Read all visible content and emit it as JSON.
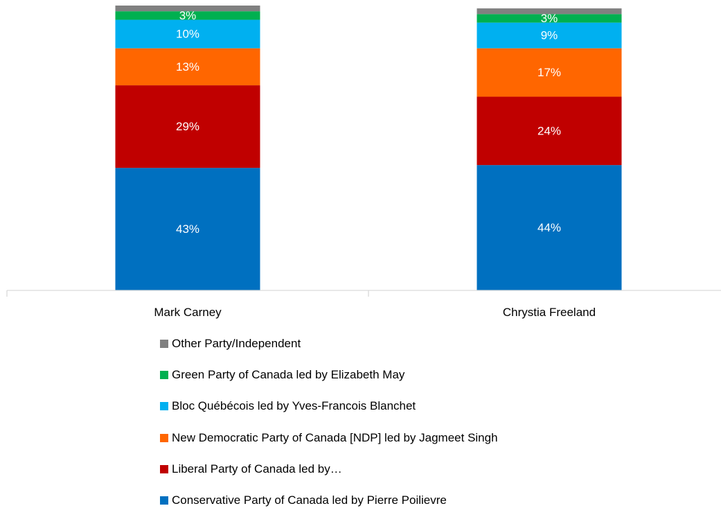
{
  "chart_data": {
    "type": "bar",
    "stacked": true,
    "title": "",
    "xlabel": "",
    "ylabel": "",
    "ylim": [
      0,
      100
    ],
    "grid": false,
    "legend_position": "bottom",
    "categories": [
      "Mark Carney",
      "Chrystia Freeland"
    ],
    "series": [
      {
        "name": "Conservative Party of Canada led by Pierre Poilievre",
        "color": "#0070C0",
        "values": [
          43,
          44
        ],
        "labels": [
          "43%",
          "44%"
        ]
      },
      {
        "name": "Liberal Party of Canada led by…",
        "color": "#C00000",
        "values": [
          29,
          24
        ],
        "labels": [
          "29%",
          "24%"
        ]
      },
      {
        "name": "New Democratic Party of Canada [NDP] led by Jagmeet Singh",
        "color": "#FF6600",
        "values": [
          13,
          17
        ],
        "labels": [
          "13%",
          "17%"
        ]
      },
      {
        "name": "Bloc Québécois led by Yves-Francois Blanchet",
        "color": "#00B0F0",
        "values": [
          10,
          9
        ],
        "labels": [
          "10%",
          "9%"
        ]
      },
      {
        "name": "Green Party of Canada led by Elizabeth May",
        "color": "#00B050",
        "values": [
          3,
          3
        ],
        "labels": [
          "3%",
          "3%"
        ]
      },
      {
        "name": "Other Party/Independent",
        "color": "#808080",
        "values": [
          2,
          2
        ],
        "labels": [
          "",
          ""
        ]
      }
    ]
  }
}
